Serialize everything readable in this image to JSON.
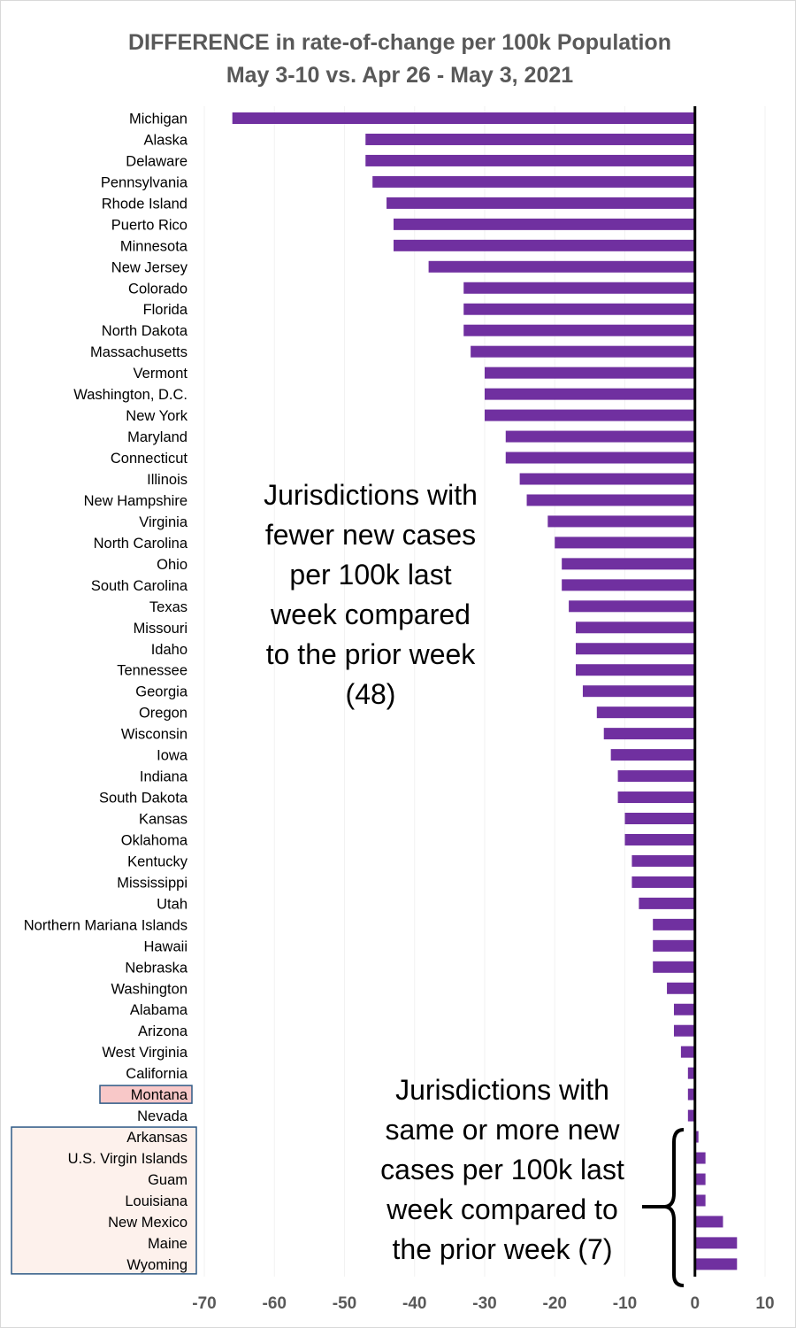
{
  "chart_data": {
    "type": "bar",
    "orientation": "horizontal",
    "title": "DIFFERENCE in rate-of-change per 100k Population",
    "subtitle": "May 3-10 vs. Apr 26 - May 3, 2021",
    "xlim": [
      -70,
      10
    ],
    "xticks": [
      "-70",
      "-60",
      "-50",
      "-40",
      "-30",
      "-20",
      "-10",
      "0",
      "10"
    ],
    "bar_color": "#7030A0",
    "categories": [
      "Michigan",
      "Alaska",
      "Delaware",
      "Pennsylvania",
      "Rhode Island",
      "Puerto Rico",
      "Minnesota",
      "New Jersey",
      "Colorado",
      "Florida",
      "North Dakota",
      "Massachusetts",
      "Vermont",
      "Washington, D.C.",
      "New York",
      "Maryland",
      "Connecticut",
      "Illinois",
      "New Hampshire",
      "Virginia",
      "North Carolina",
      "Ohio",
      "South Carolina",
      "Texas",
      "Missouri",
      "Idaho",
      "Tennessee",
      "Georgia",
      "Oregon",
      "Wisconsin",
      "Iowa",
      "Indiana",
      "South Dakota",
      "Kansas",
      "Oklahoma",
      "Kentucky",
      "Mississippi",
      "Utah",
      "Northern Mariana Islands",
      "Hawaii",
      "Nebraska",
      "Washington",
      "Alabama",
      "Arizona",
      "West Virginia",
      "California",
      "Montana",
      "Nevada",
      "Arkansas",
      "U.S. Virgin Islands",
      "Guam",
      "Louisiana",
      "New Mexico",
      "Maine",
      "Wyoming"
    ],
    "values": [
      -66,
      -47,
      -47,
      -46,
      -44,
      -43,
      -43,
      -38,
      -33,
      -33,
      -33,
      -32,
      -30,
      -30,
      -30,
      -27,
      -27,
      -25,
      -24,
      -21,
      -20,
      -19,
      -19,
      -18,
      -17,
      -17,
      -17,
      -16,
      -14,
      -13,
      -12,
      -11,
      -11,
      -10,
      -10,
      -9,
      -9,
      -8,
      -6,
      -6,
      -6,
      -4,
      -3,
      -3,
      -2,
      -1,
      -1,
      -1,
      0.5,
      1.5,
      1.5,
      1.5,
      4,
      6,
      6
    ],
    "highlight": "Montana",
    "boxed_group": [
      "Arkansas",
      "U.S. Virgin Islands",
      "Guam",
      "Louisiana",
      "New Mexico",
      "Maine",
      "Wyoming"
    ],
    "annotation_fewer": [
      "Jurisdictions with",
      "fewer new cases",
      "per 100k last",
      "week compared",
      "to the prior week",
      "(48)"
    ],
    "annotation_more": [
      "Jurisdictions with",
      "same or more new",
      "cases per 100k last",
      "week compared to",
      "the prior week (7)"
    ]
  }
}
